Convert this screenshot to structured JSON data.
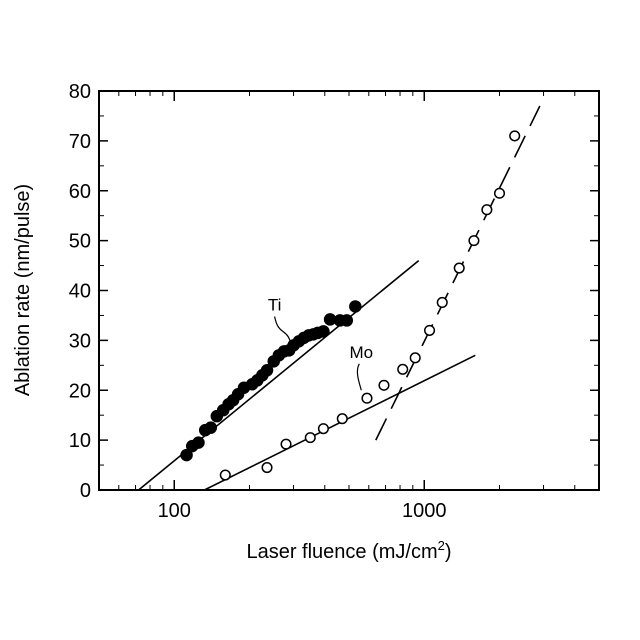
{
  "chart_data": {
    "type": "scatter",
    "xlabel": "Laser fluence (mJ/cm",
    "xlabel_sup": "2",
    "xlabel_end": ")",
    "ylabel": "Ablation rate (nm/pulse)",
    "xscale": "log",
    "xlim": [
      50,
      5000
    ],
    "ylim": [
      0,
      80
    ],
    "x_ticks": [
      100,
      1000
    ],
    "x_tick_labels": [
      "100",
      "1000"
    ],
    "y_ticks": [
      0,
      10,
      20,
      30,
      40,
      50,
      60,
      70,
      80
    ],
    "y_tick_labels": [
      "0",
      "10",
      "20",
      "30",
      "40",
      "50",
      "60",
      "70",
      "80"
    ],
    "grid": false,
    "series": [
      {
        "name": "Ti",
        "marker": "filled-circle",
        "x": [
          112,
          118,
          125,
          133,
          140,
          148,
          157,
          165,
          172,
          180,
          190,
          205,
          215,
          225,
          235,
          250,
          262,
          275,
          288,
          300,
          315,
          330,
          345,
          360,
          375,
          395,
          420,
          460,
          490,
          530
        ],
        "y": [
          7.0,
          8.8,
          9.5,
          12.0,
          12.5,
          14.8,
          16.0,
          17.2,
          18.0,
          19.2,
          20.5,
          21.2,
          22.0,
          23.0,
          24.0,
          25.8,
          27.0,
          27.8,
          28.0,
          29.0,
          29.8,
          30.5,
          31.0,
          31.2,
          31.5,
          31.8,
          34.2,
          34.0,
          34.0,
          36.8
        ]
      },
      {
        "name": "Mo",
        "marker": "open-circle",
        "x": [
          160,
          235,
          280,
          350,
          395,
          470,
          590,
          690,
          820,
          920,
          1050,
          1180,
          1380,
          1580,
          1780,
          2000,
          2300
        ],
        "y": [
          3.0,
          4.5,
          9.2,
          10.5,
          12.3,
          14.3,
          18.4,
          21.0,
          24.2,
          26.5,
          32.0,
          37.6,
          44.5,
          50.0,
          56.2,
          59.5,
          71.0
        ]
      }
    ],
    "fit_lines": [
      {
        "series": "Ti",
        "style": "solid",
        "x": [
          72,
          950
        ],
        "y": [
          0,
          46
        ]
      },
      {
        "series": "Mo",
        "style": "solid",
        "x": [
          132,
          1600
        ],
        "y": [
          0,
          27
        ]
      },
      {
        "series": "Mo",
        "style": "dashed",
        "x": [
          640,
          2900
        ],
        "y": [
          10,
          77
        ]
      }
    ],
    "annotations": [
      {
        "text": "Ti",
        "series": "Ti"
      },
      {
        "text": "Mo",
        "series": "Mo"
      }
    ]
  }
}
